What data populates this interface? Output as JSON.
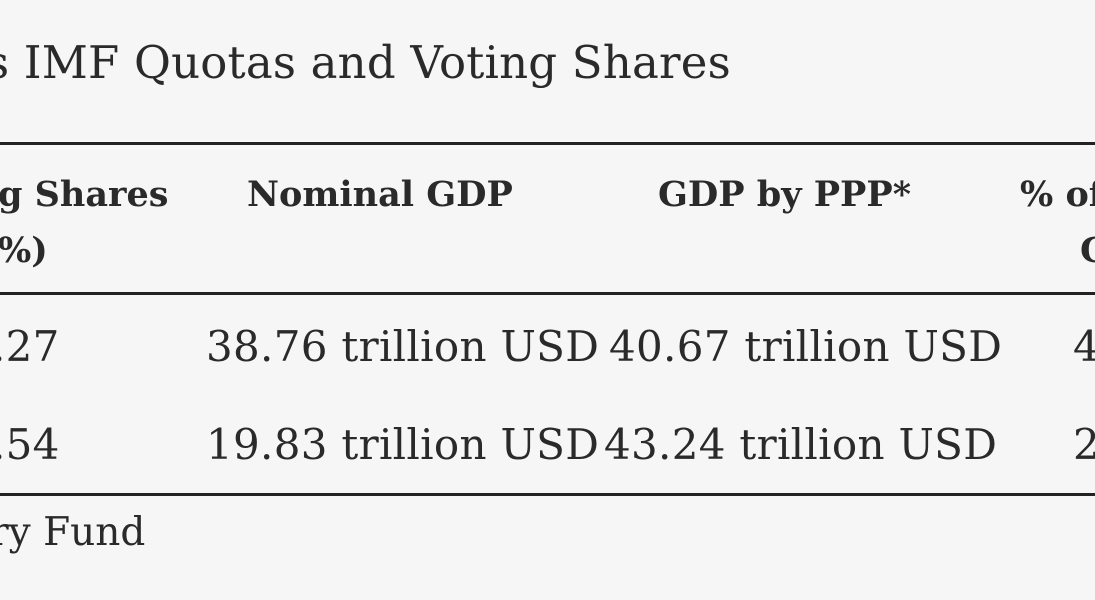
{
  "table": {
    "title": "s IMF Quotas and Voting Shares",
    "headers": {
      "voting_line1": "g Shares",
      "voting_line2": "%)",
      "nominal_gdp": "Nominal GDP",
      "gdp_ppp": "GDP by PPP*",
      "pct_line1": "% of",
      "pct_line2": "G"
    },
    "rows": [
      {
        "voting": ".27",
        "nominal": "38.76 trillion USD",
        "ppp": "40.67 trillion USD",
        "pct": "4"
      },
      {
        "voting": ".54",
        "nominal": "19.83 trillion USD",
        "ppp": "43.24 trillion USD",
        "pct": "2"
      }
    ],
    "source": "ry Fund"
  }
}
